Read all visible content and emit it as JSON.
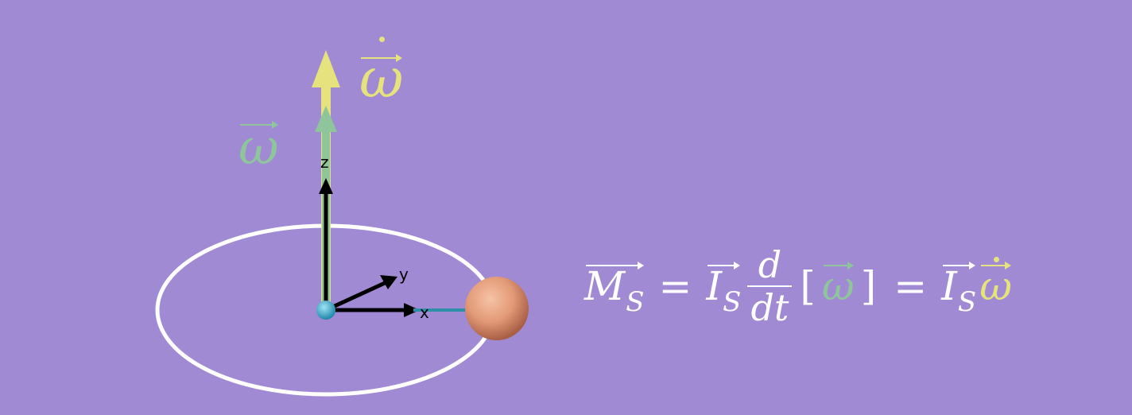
{
  "scene": {
    "axis_labels": {
      "z": "z",
      "y": "y",
      "x": "x"
    },
    "vector_labels": {
      "omega": "ω",
      "omega_dot": "ω"
    }
  },
  "equation": {
    "lhs_symbol": "M",
    "lhs_subscript": "S",
    "equals_1": "=",
    "inertia_symbol": "I",
    "inertia_subscript": "S",
    "deriv_num": "d",
    "deriv_den": "dt",
    "bracket_open": "[",
    "omega_symbol": "ω",
    "bracket_close": "]",
    "equals_2": "=",
    "inertia_symbol_2": "I",
    "inertia_subscript_2": "S",
    "omega_dot_symbol": "ω"
  },
  "colors": {
    "background": "#a08ad4",
    "omega": "#8ec59b",
    "omega_dot": "#e6e27d",
    "ellipse": "#ffffff",
    "axes": "#000000",
    "pivot": "#3ab5d6",
    "rod": "#2e8fa8",
    "ball": "#e39a77"
  }
}
